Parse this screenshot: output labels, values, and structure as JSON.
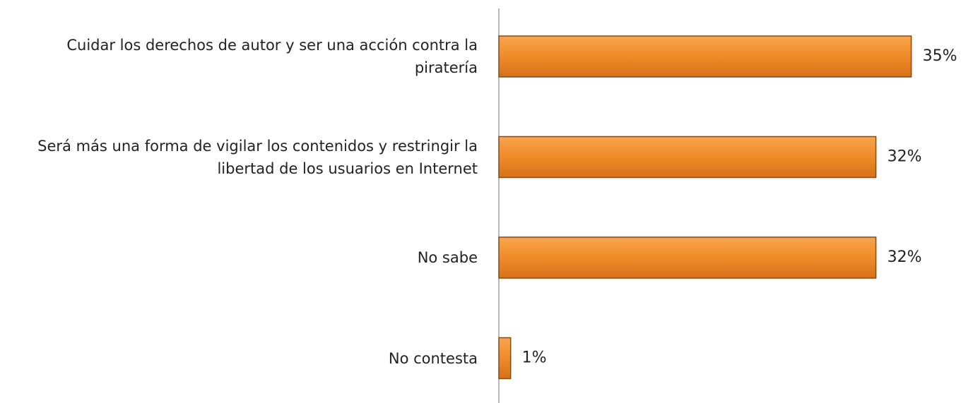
{
  "chart_data": {
    "type": "bar",
    "orientation": "horizontal",
    "categories": [
      "Cuidar los derechos de autor y ser una acción contra la piratería",
      "Será más una forma de vigilar los contenidos y restringir la libertad de los usuarios en Internet",
      "No sabe",
      "No contesta"
    ],
    "values": [
      35,
      32,
      32,
      1
    ],
    "value_labels": [
      "35%",
      "32%",
      "32%",
      "1%"
    ],
    "color": "#f28c28",
    "xlim": [
      0,
      40
    ]
  }
}
